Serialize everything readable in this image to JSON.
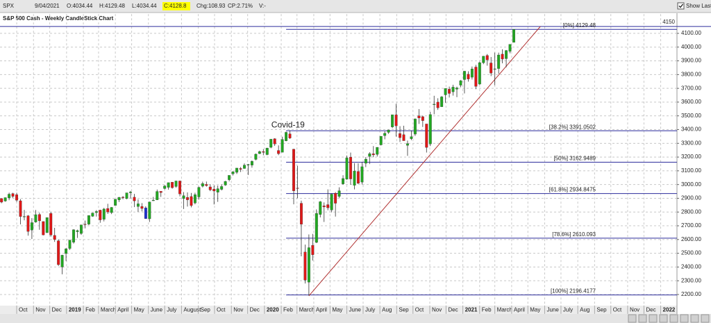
{
  "header": {
    "symbol": "SPX",
    "date": "9/04/2021",
    "open": "O:4034.44",
    "high": "H:4129.48",
    "low": "L:4034.44",
    "close": "C:4128.8",
    "change": "Chg:108.93",
    "change_pct": "CP:2.71%",
    "volume": "V:-",
    "show_last": "Show Last"
  },
  "chart_data": {
    "type": "candlestick",
    "title": "S&P 500 Cash - Weekly CandleStick Chart",
    "ohlc": [
      [
        2898,
        2900,
        2864,
        2872
      ],
      [
        2880,
        2906,
        2875,
        2905
      ],
      [
        2903,
        2941,
        2886,
        2930
      ],
      [
        2934,
        2940,
        2903,
        2914
      ],
      [
        2926,
        2940,
        2874,
        2886
      ],
      [
        2882,
        2894,
        2710,
        2767
      ],
      [
        2764,
        2816,
        2740,
        2768
      ],
      [
        2773,
        2778,
        2628,
        2659
      ],
      [
        2669,
        2756,
        2604,
        2723
      ],
      [
        2727,
        2815,
        2722,
        2781
      ],
      [
        2782,
        2795,
        2671,
        2736
      ],
      [
        2731,
        2732,
        2631,
        2633
      ],
      [
        2650,
        2760,
        2647,
        2760
      ],
      [
        2790,
        2800,
        2621,
        2633
      ],
      [
        2630,
        2685,
        2583,
        2600
      ],
      [
        2591,
        2601,
        2408,
        2417
      ],
      [
        2400,
        2489,
        2347,
        2486
      ],
      [
        2498,
        2538,
        2444,
        2532
      ],
      [
        2535,
        2597,
        2524,
        2596
      ],
      [
        2580,
        2675,
        2570,
        2671
      ],
      [
        2657,
        2672,
        2612,
        2665
      ],
      [
        2644,
        2708,
        2634,
        2707
      ],
      [
        2712,
        2738,
        2681,
        2708
      ],
      [
        2712,
        2775,
        2705,
        2775
      ],
      [
        2769,
        2795,
        2765,
        2793
      ],
      [
        2796,
        2814,
        2767,
        2804
      ],
      [
        2814,
        2816,
        2722,
        2743
      ],
      [
        2747,
        2830,
        2732,
        2822
      ],
      [
        2826,
        2860,
        2786,
        2800
      ],
      [
        2796,
        2836,
        2785,
        2834
      ],
      [
        2848,
        2893,
        2848,
        2893
      ],
      [
        2888,
        2910,
        2873,
        2907
      ],
      [
        2908,
        2916,
        2893,
        2905
      ],
      [
        2898,
        2940,
        2893,
        2940
      ],
      [
        2940,
        2954,
        2900,
        2946
      ],
      [
        2908,
        2932,
        2836,
        2881
      ],
      [
        2840,
        2892,
        2801,
        2860
      ],
      [
        2841,
        2865,
        2805,
        2826
      ],
      [
        2830,
        2842,
        2750,
        2752
      ],
      [
        2751,
        2876,
        2728,
        2873
      ],
      [
        2886,
        2910,
        2880,
        2886
      ],
      [
        2889,
        2964,
        2887,
        2950
      ],
      [
        2951,
        2951,
        2910,
        2942
      ],
      [
        2971,
        2996,
        2964,
        2990
      ],
      [
        2979,
        3014,
        2963,
        3014
      ],
      [
        3017,
        3018,
        2970,
        2977
      ],
      [
        2986,
        3028,
        2977,
        3026
      ],
      [
        3026,
        3029,
        2914,
        2932
      ],
      [
        2898,
        2945,
        2822,
        2919
      ],
      [
        2907,
        2943,
        2840,
        2889
      ],
      [
        2913,
        2939,
        2834,
        2847
      ],
      [
        2866,
        2940,
        2856,
        2926
      ],
      [
        2910,
        2985,
        2891,
        2979
      ],
      [
        2988,
        3021,
        2979,
        3007
      ],
      [
        3001,
        3022,
        2985,
        2992
      ],
      [
        2983,
        3002,
        2952,
        2961
      ],
      [
        2967,
        2993,
        2855,
        2953
      ],
      [
        2944,
        2993,
        2874,
        2970
      ],
      [
        2965,
        3000,
        2957,
        2986
      ],
      [
        2996,
        3027,
        2991,
        3023
      ],
      [
        3035,
        3066,
        3023,
        3067
      ],
      [
        3078,
        3097,
        3066,
        3093
      ],
      [
        3089,
        3120,
        3077,
        3120
      ],
      [
        3117,
        3127,
        3091,
        3110
      ],
      [
        3117,
        3154,
        3115,
        3141
      ],
      [
        3144,
        3150,
        3070,
        3146
      ],
      [
        3141,
        3176,
        3123,
        3169
      ],
      [
        3183,
        3226,
        3176,
        3221
      ],
      [
        3225,
        3247,
        3222,
        3240
      ],
      [
        3240,
        3258,
        3213,
        3235
      ],
      [
        3218,
        3268,
        3213,
        3265
      ],
      [
        3271,
        3330,
        3264,
        3330
      ],
      [
        3333,
        3337,
        3281,
        3295
      ],
      [
        3248,
        3285,
        3214,
        3225
      ],
      [
        3235,
        3348,
        3235,
        3328
      ],
      [
        3318,
        3385,
        3315,
        3380
      ],
      [
        3369,
        3394,
        3332,
        3338
      ],
      [
        3257,
        3260,
        2856,
        2954
      ],
      [
        2975,
        3137,
        2901,
        2972
      ],
      [
        2864,
        2883,
        2478,
        2711
      ],
      [
        2509,
        2563,
        2280,
        2305
      ],
      [
        2290,
        2637,
        2192,
        2541
      ],
      [
        2558,
        2641,
        2447,
        2489
      ],
      [
        2579,
        2819,
        2574,
        2790
      ],
      [
        2782,
        2880,
        2761,
        2875
      ],
      [
        2845,
        2870,
        2728,
        2837
      ],
      [
        2854,
        2965,
        2813,
        2831
      ],
      [
        2815,
        2934,
        2798,
        2930
      ],
      [
        2937,
        2945,
        2767,
        2864
      ],
      [
        2914,
        2980,
        2903,
        2955
      ],
      [
        3005,
        3068,
        2999,
        3044
      ],
      [
        3039,
        3211,
        3035,
        3194
      ],
      [
        3199,
        3233,
        2999,
        3041
      ],
      [
        2994,
        3156,
        2965,
        3098
      ],
      [
        3095,
        3155,
        3004,
        3009
      ],
      [
        3018,
        3165,
        3000,
        3130
      ],
      [
        3155,
        3200,
        3127,
        3185
      ],
      [
        3205,
        3236,
        3149,
        3225
      ],
      [
        3224,
        3280,
        3199,
        3216
      ],
      [
        3219,
        3272,
        3204,
        3271
      ],
      [
        3289,
        3352,
        3284,
        3351
      ],
      [
        3356,
        3387,
        3329,
        3373
      ],
      [
        3380,
        3399,
        3369,
        3397
      ],
      [
        3419,
        3509,
        3410,
        3508
      ],
      [
        3507,
        3588,
        3349,
        3427
      ],
      [
        3371,
        3425,
        3310,
        3341
      ],
      [
        3363,
        3428,
        3319,
        3319
      ],
      [
        3285,
        3320,
        3209,
        3298
      ],
      [
        3333,
        3393,
        3323,
        3348
      ],
      [
        3367,
        3482,
        3354,
        3477
      ],
      [
        3500,
        3549,
        3441,
        3484
      ],
      [
        3494,
        3501,
        3419,
        3465
      ],
      [
        3441,
        3441,
        3233,
        3270
      ],
      [
        3296,
        3529,
        3280,
        3509
      ],
      [
        3583,
        3646,
        3511,
        3585
      ],
      [
        3600,
        3628,
        3543,
        3558
      ],
      [
        3566,
        3644,
        3566,
        3638
      ],
      [
        3653,
        3699,
        3595,
        3699
      ],
      [
        3694,
        3713,
        3633,
        3663
      ],
      [
        3675,
        3726,
        3647,
        3709
      ],
      [
        3694,
        3712,
        3636,
        3703
      ],
      [
        3723,
        3760,
        3708,
        3756
      ],
      [
        3764,
        3826,
        3663,
        3825
      ],
      [
        3803,
        3824,
        3749,
        3768
      ],
      [
        3781,
        3859,
        3764,
        3841
      ],
      [
        3855,
        3871,
        3694,
        3714
      ],
      [
        3731,
        3894,
        3725,
        3887
      ],
      [
        3886,
        3935,
        3876,
        3934
      ],
      [
        3939,
        3950,
        3865,
        3907
      ],
      [
        3885,
        3928,
        3789,
        3811
      ],
      [
        3842,
        3960,
        3723,
        3842
      ],
      [
        3844,
        3960,
        3806,
        3943
      ],
      [
        3949,
        3984,
        3882,
        3913
      ],
      [
        3916,
        3979,
        3853,
        3975
      ],
      [
        3969,
        4020,
        3955,
        4020
      ],
      [
        4034.44,
        4129.48,
        4034.44,
        4128.8
      ]
    ],
    "up_color": "#22a822",
    "down_color": "#e01818",
    "highlight": {
      "index": 38,
      "color": "#1c2fd0"
    },
    "xlim": [
      -0.4,
      178
    ],
    "xticks": [
      {
        "value": 4.0,
        "label": "Oct"
      },
      {
        "value": 8.43,
        "label": "Nov"
      },
      {
        "value": 12.71,
        "label": "Dec"
      },
      {
        "value": 17.14,
        "label": "2019"
      },
      {
        "value": 21.57,
        "label": "Feb"
      },
      {
        "value": 25.57,
        "label": "March"
      },
      {
        "value": 30,
        "label": "April"
      },
      {
        "value": 34.29,
        "label": "May"
      },
      {
        "value": 38.71,
        "label": "June"
      },
      {
        "value": 43,
        "label": "July"
      },
      {
        "value": 47.43,
        "label": "August"
      },
      {
        "value": 51.86,
        "label": "Sep"
      },
      {
        "value": 56.14,
        "label": "Oct"
      },
      {
        "value": 60.57,
        "label": "Nov"
      },
      {
        "value": 64.86,
        "label": "Dec"
      },
      {
        "value": 69.29,
        "label": "2020"
      },
      {
        "value": 73.71,
        "label": "Feb"
      },
      {
        "value": 77.86,
        "label": "March"
      },
      {
        "value": 82.29,
        "label": "April"
      },
      {
        "value": 86.57,
        "label": "May"
      },
      {
        "value": 91,
        "label": "June"
      },
      {
        "value": 95.29,
        "label": "July"
      },
      {
        "value": 99.71,
        "label": "Aug"
      },
      {
        "value": 104.14,
        "label": "Sep"
      },
      {
        "value": 108.43,
        "label": "Oct"
      },
      {
        "value": 112.86,
        "label": "Nov"
      },
      {
        "value": 117.14,
        "label": "Dec"
      },
      {
        "value": 121.57,
        "label": "2021"
      },
      {
        "value": 126,
        "label": "Feb"
      },
      {
        "value": 130,
        "label": "March"
      },
      {
        "value": 134.43,
        "label": "April"
      },
      {
        "value": 138.71,
        "label": "May"
      },
      {
        "value": 143.14,
        "label": "June"
      },
      {
        "value": 147.43,
        "label": "July"
      },
      {
        "value": 151.86,
        "label": "Aug"
      },
      {
        "value": 156.29,
        "label": "Sep"
      },
      {
        "value": 160.57,
        "label": "Oct"
      },
      {
        "value": 165,
        "label": "Nov"
      },
      {
        "value": 169.29,
        "label": "Dec"
      },
      {
        "value": 173.71,
        "label": "2022"
      }
    ],
    "ylim": [
      2120,
      4180
    ],
    "yticks": [
      {
        "value": 2200,
        "label": "2200.00"
      },
      {
        "value": 2300,
        "label": "2300.00"
      },
      {
        "value": 2400,
        "label": "2400.00"
      },
      {
        "value": 2500,
        "label": "2500.00"
      },
      {
        "value": 2600,
        "label": "2600.00"
      },
      {
        "value": 2700,
        "label": "2700.00"
      },
      {
        "value": 2800,
        "label": "2800.00"
      },
      {
        "value": 2900,
        "label": "2900.00"
      },
      {
        "value": 3000,
        "label": "3000.00"
      },
      {
        "value": 3100,
        "label": "3100.00"
      },
      {
        "value": 3200,
        "label": "3200.00"
      },
      {
        "value": 3300,
        "label": "3300.00"
      },
      {
        "value": 3400,
        "label": "3400.00"
      },
      {
        "value": 3500,
        "label": "3500.00"
      },
      {
        "value": 3600,
        "label": "3600.00"
      },
      {
        "value": 3700,
        "label": "3700.00"
      },
      {
        "value": 3800,
        "label": "3800.00"
      },
      {
        "value": 3900,
        "label": "3900.00"
      },
      {
        "value": 4000,
        "label": "4000.00"
      },
      {
        "value": 4100,
        "label": "4100.00"
      }
    ],
    "grid": true,
    "hline": {
      "value": 4150,
      "color": "#2c2c9c"
    },
    "fib": {
      "start": 75,
      "color": "#2c2c9c",
      "names": [
        "[0%]",
        "[38.2%]",
        "[50%]",
        "[61.8%]",
        "[78.6%]",
        "[100%]"
      ],
      "values": [
        4129.48,
        3391.0502,
        3162.9489,
        2934.8475,
        2610.093,
        2196.4177
      ]
    },
    "trendline": {
      "x": [
        81,
        142
      ],
      "y": [
        2190,
        4150
      ],
      "color": "#b03030"
    },
    "annotation": {
      "text": "Covid-19",
      "x": 75.5,
      "y": 3432
    }
  }
}
